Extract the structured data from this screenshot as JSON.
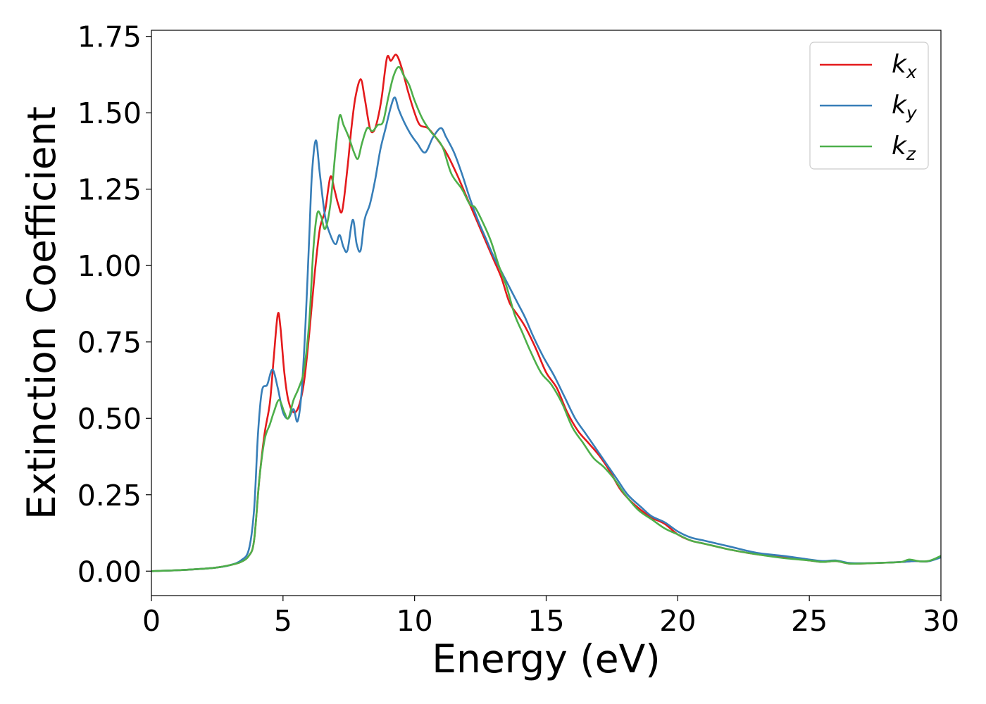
{
  "chart_data": {
    "type": "line",
    "xlabel": "Energy (eV)",
    "ylabel": "Extinction Coefficient",
    "xlim": [
      0,
      30
    ],
    "ylim": [
      -0.08,
      1.77
    ],
    "xticks": [
      0,
      5,
      10,
      15,
      20,
      25,
      30
    ],
    "xtick_labels": [
      "0",
      "5",
      "10",
      "15",
      "20",
      "25",
      "30"
    ],
    "yticks": [
      0,
      0.25,
      0.5,
      0.75,
      1.0,
      1.25,
      1.5,
      1.75
    ],
    "ytick_labels": [
      "0.00",
      "0.25",
      "0.50",
      "0.75",
      "1.00",
      "1.25",
      "1.50",
      "1.75"
    ],
    "grid": false,
    "legend_position": "top-right",
    "series": [
      {
        "name": "k",
        "subscript": "x",
        "color": "#e41a1c",
        "points": [
          [
            0,
            0
          ],
          [
            1,
            0.003
          ],
          [
            2,
            0.008
          ],
          [
            2.5,
            0.012
          ],
          [
            3,
            0.02
          ],
          [
            3.4,
            0.03
          ],
          [
            3.7,
            0.05
          ],
          [
            3.9,
            0.1
          ],
          [
            4.1,
            0.3
          ],
          [
            4.3,
            0.45
          ],
          [
            4.5,
            0.55
          ],
          [
            4.65,
            0.7
          ],
          [
            4.8,
            0.84
          ],
          [
            4.9,
            0.8
          ],
          [
            5.05,
            0.65
          ],
          [
            5.2,
            0.56
          ],
          [
            5.4,
            0.52
          ],
          [
            5.6,
            0.54
          ],
          [
            5.8,
            0.62
          ],
          [
            6.0,
            0.78
          ],
          [
            6.2,
            0.97
          ],
          [
            6.4,
            1.12
          ],
          [
            6.6,
            1.18
          ],
          [
            6.8,
            1.29
          ],
          [
            6.95,
            1.25
          ],
          [
            7.1,
            1.2
          ],
          [
            7.25,
            1.18
          ],
          [
            7.45,
            1.32
          ],
          [
            7.6,
            1.45
          ],
          [
            7.75,
            1.55
          ],
          [
            7.95,
            1.61
          ],
          [
            8.1,
            1.55
          ],
          [
            8.3,
            1.45
          ],
          [
            8.45,
            1.44
          ],
          [
            8.6,
            1.48
          ],
          [
            8.75,
            1.55
          ],
          [
            8.95,
            1.68
          ],
          [
            9.1,
            1.67
          ],
          [
            9.3,
            1.69
          ],
          [
            9.5,
            1.65
          ],
          [
            9.75,
            1.57
          ],
          [
            10.0,
            1.5
          ],
          [
            10.2,
            1.46
          ],
          [
            10.5,
            1.45
          ],
          [
            10.8,
            1.42
          ],
          [
            11.2,
            1.37
          ],
          [
            11.6,
            1.3
          ],
          [
            12.0,
            1.22
          ],
          [
            12.3,
            1.16
          ],
          [
            12.6,
            1.1
          ],
          [
            13.0,
            1.02
          ],
          [
            13.3,
            0.96
          ],
          [
            13.6,
            0.88
          ],
          [
            13.9,
            0.84
          ],
          [
            14.2,
            0.8
          ],
          [
            14.6,
            0.73
          ],
          [
            15.0,
            0.65
          ],
          [
            15.4,
            0.6
          ],
          [
            15.8,
            0.52
          ],
          [
            16.2,
            0.46
          ],
          [
            16.6,
            0.42
          ],
          [
            17.0,
            0.38
          ],
          [
            17.4,
            0.33
          ],
          [
            17.8,
            0.27
          ],
          [
            18.2,
            0.23
          ],
          [
            18.6,
            0.2
          ],
          [
            19.0,
            0.175
          ],
          [
            19.5,
            0.155
          ],
          [
            20.0,
            0.12
          ],
          [
            20.5,
            0.1
          ],
          [
            21.0,
            0.09
          ],
          [
            21.5,
            0.08
          ],
          [
            22.0,
            0.07
          ],
          [
            23.0,
            0.055
          ],
          [
            24.0,
            0.045
          ],
          [
            25.0,
            0.035
          ],
          [
            25.5,
            0.03
          ],
          [
            26.0,
            0.033
          ],
          [
            26.5,
            0.025
          ],
          [
            27.0,
            0.025
          ],
          [
            28.0,
            0.028
          ],
          [
            28.5,
            0.03
          ],
          [
            29.0,
            0.033
          ],
          [
            29.5,
            0.032
          ],
          [
            30.0,
            0.048
          ]
        ]
      },
      {
        "name": "k",
        "subscript": "y",
        "color": "#377eb8",
        "points": [
          [
            0,
            0
          ],
          [
            1,
            0.003
          ],
          [
            2,
            0.008
          ],
          [
            2.5,
            0.012
          ],
          [
            3,
            0.02
          ],
          [
            3.4,
            0.035
          ],
          [
            3.7,
            0.07
          ],
          [
            3.9,
            0.2
          ],
          [
            4.05,
            0.45
          ],
          [
            4.2,
            0.59
          ],
          [
            4.4,
            0.61
          ],
          [
            4.6,
            0.66
          ],
          [
            4.8,
            0.6
          ],
          [
            5.0,
            0.52
          ],
          [
            5.2,
            0.5
          ],
          [
            5.4,
            0.53
          ],
          [
            5.55,
            0.49
          ],
          [
            5.7,
            0.58
          ],
          [
            5.85,
            0.8
          ],
          [
            6.0,
            1.1
          ],
          [
            6.1,
            1.3
          ],
          [
            6.25,
            1.41
          ],
          [
            6.4,
            1.3
          ],
          [
            6.6,
            1.16
          ],
          [
            6.8,
            1.1
          ],
          [
            7.0,
            1.07
          ],
          [
            7.15,
            1.1
          ],
          [
            7.3,
            1.06
          ],
          [
            7.45,
            1.05
          ],
          [
            7.65,
            1.15
          ],
          [
            7.8,
            1.07
          ],
          [
            7.95,
            1.05
          ],
          [
            8.1,
            1.15
          ],
          [
            8.3,
            1.2
          ],
          [
            8.5,
            1.28
          ],
          [
            8.7,
            1.38
          ],
          [
            8.9,
            1.45
          ],
          [
            9.1,
            1.52
          ],
          [
            9.25,
            1.55
          ],
          [
            9.4,
            1.51
          ],
          [
            9.6,
            1.47
          ],
          [
            9.85,
            1.43
          ],
          [
            10.1,
            1.4
          ],
          [
            10.4,
            1.37
          ],
          [
            10.7,
            1.42
          ],
          [
            11.0,
            1.45
          ],
          [
            11.2,
            1.42
          ],
          [
            11.5,
            1.37
          ],
          [
            11.8,
            1.3
          ],
          [
            12.1,
            1.22
          ],
          [
            12.4,
            1.15
          ],
          [
            12.7,
            1.09
          ],
          [
            13.0,
            1.03
          ],
          [
            13.3,
            0.98
          ],
          [
            13.6,
            0.93
          ],
          [
            13.9,
            0.88
          ],
          [
            14.2,
            0.83
          ],
          [
            14.5,
            0.77
          ],
          [
            14.9,
            0.7
          ],
          [
            15.3,
            0.64
          ],
          [
            15.7,
            0.57
          ],
          [
            16.1,
            0.5
          ],
          [
            16.5,
            0.45
          ],
          [
            16.9,
            0.4
          ],
          [
            17.3,
            0.35
          ],
          [
            17.7,
            0.3
          ],
          [
            18.1,
            0.25
          ],
          [
            18.6,
            0.21
          ],
          [
            19.0,
            0.18
          ],
          [
            19.5,
            0.16
          ],
          [
            20.0,
            0.13
          ],
          [
            20.5,
            0.11
          ],
          [
            21.0,
            0.1
          ],
          [
            21.5,
            0.09
          ],
          [
            22.0,
            0.08
          ],
          [
            23.0,
            0.06
          ],
          [
            24.0,
            0.05
          ],
          [
            25.0,
            0.038
          ],
          [
            25.5,
            0.033
          ],
          [
            26.0,
            0.035
          ],
          [
            26.5,
            0.027
          ],
          [
            27.0,
            0.026
          ],
          [
            28.0,
            0.028
          ],
          [
            28.5,
            0.03
          ],
          [
            29.0,
            0.033
          ],
          [
            29.5,
            0.032
          ],
          [
            30.0,
            0.045
          ]
        ]
      },
      {
        "name": "k",
        "subscript": "z",
        "color": "#4daf4a",
        "points": [
          [
            0,
            0
          ],
          [
            1,
            0.003
          ],
          [
            2,
            0.008
          ],
          [
            2.5,
            0.012
          ],
          [
            3,
            0.02
          ],
          [
            3.4,
            0.03
          ],
          [
            3.7,
            0.05
          ],
          [
            3.9,
            0.1
          ],
          [
            4.1,
            0.3
          ],
          [
            4.3,
            0.43
          ],
          [
            4.5,
            0.48
          ],
          [
            4.65,
            0.52
          ],
          [
            4.85,
            0.56
          ],
          [
            5.05,
            0.52
          ],
          [
            5.2,
            0.5
          ],
          [
            5.4,
            0.56
          ],
          [
            5.6,
            0.6
          ],
          [
            5.8,
            0.66
          ],
          [
            6.0,
            0.82
          ],
          [
            6.15,
            1.05
          ],
          [
            6.3,
            1.17
          ],
          [
            6.45,
            1.16
          ],
          [
            6.6,
            1.12
          ],
          [
            6.8,
            1.2
          ],
          [
            7.0,
            1.38
          ],
          [
            7.15,
            1.49
          ],
          [
            7.3,
            1.46
          ],
          [
            7.5,
            1.42
          ],
          [
            7.7,
            1.37
          ],
          [
            7.85,
            1.35
          ],
          [
            8.0,
            1.4
          ],
          [
            8.2,
            1.45
          ],
          [
            8.4,
            1.44
          ],
          [
            8.6,
            1.46
          ],
          [
            8.8,
            1.47
          ],
          [
            9.0,
            1.55
          ],
          [
            9.2,
            1.62
          ],
          [
            9.4,
            1.65
          ],
          [
            9.6,
            1.62
          ],
          [
            9.8,
            1.59
          ],
          [
            10.0,
            1.54
          ],
          [
            10.3,
            1.48
          ],
          [
            10.6,
            1.44
          ],
          [
            10.9,
            1.41
          ],
          [
            11.1,
            1.38
          ],
          [
            11.4,
            1.3
          ],
          [
            11.8,
            1.25
          ],
          [
            12.1,
            1.2
          ],
          [
            12.3,
            1.19
          ],
          [
            12.6,
            1.14
          ],
          [
            12.9,
            1.08
          ],
          [
            13.2,
            1.0
          ],
          [
            13.5,
            0.93
          ],
          [
            13.8,
            0.84
          ],
          [
            14.1,
            0.78
          ],
          [
            14.4,
            0.72
          ],
          [
            14.8,
            0.65
          ],
          [
            15.2,
            0.61
          ],
          [
            15.6,
            0.55
          ],
          [
            16.0,
            0.47
          ],
          [
            16.4,
            0.42
          ],
          [
            16.8,
            0.37
          ],
          [
            17.2,
            0.34
          ],
          [
            17.6,
            0.3
          ],
          [
            18.0,
            0.25
          ],
          [
            18.5,
            0.2
          ],
          [
            19.0,
            0.17
          ],
          [
            19.5,
            0.14
          ],
          [
            20.0,
            0.12
          ],
          [
            20.5,
            0.1
          ],
          [
            21.0,
            0.09
          ],
          [
            21.5,
            0.08
          ],
          [
            22.0,
            0.07
          ],
          [
            23.0,
            0.055
          ],
          [
            24.0,
            0.043
          ],
          [
            25.0,
            0.035
          ],
          [
            25.5,
            0.03
          ],
          [
            26.0,
            0.033
          ],
          [
            26.5,
            0.025
          ],
          [
            27.0,
            0.025
          ],
          [
            28.0,
            0.028
          ],
          [
            28.5,
            0.03
          ],
          [
            28.8,
            0.038
          ],
          [
            29.2,
            0.032
          ],
          [
            29.6,
            0.035
          ],
          [
            30.0,
            0.05
          ]
        ]
      }
    ]
  }
}
